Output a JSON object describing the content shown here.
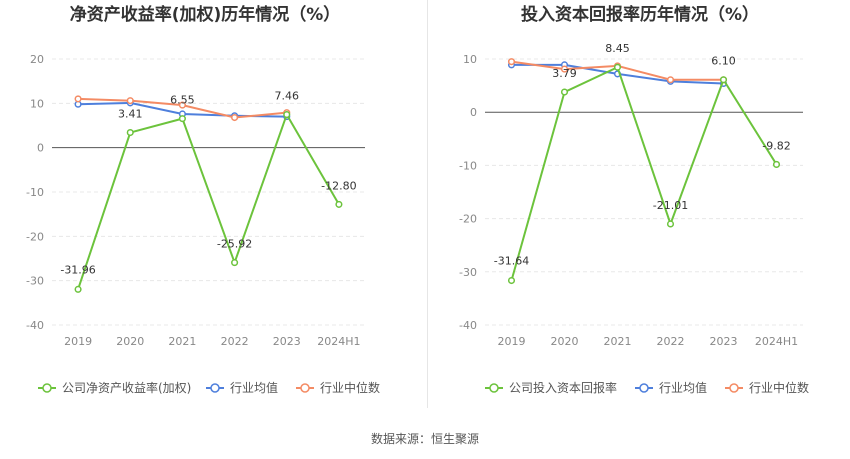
{
  "source_note": "数据来源：恒生聚源",
  "colors": {
    "company": "#6cc33c",
    "industry_avg": "#4e7fdc",
    "industry_median": "#f48b64"
  },
  "chart_data": [
    {
      "type": "line",
      "title": "净资产收益率(加权)历年情况（%）",
      "categories": [
        "2019",
        "2020",
        "2021",
        "2022",
        "2023",
        "2024H1"
      ],
      "ylim": [
        -40,
        20
      ],
      "yticks": [
        20,
        10,
        0,
        -10,
        -20,
        -30,
        -40
      ],
      "grid": true,
      "legend_position": "bottom",
      "series": [
        {
          "name": "公司净资产收益率(加权)",
          "color": "#6cc33c",
          "values": [
            -31.96,
            3.41,
            6.55,
            -25.92,
            7.46,
            -12.8
          ],
          "labels": [
            "-31.96",
            "3.41",
            "6.55",
            "-25.92",
            "7.46",
            "-12.80"
          ]
        },
        {
          "name": "行业均值",
          "color": "#4e7fdc",
          "values": [
            9.8,
            10.1,
            7.6,
            7.2,
            7.0,
            null
          ]
        },
        {
          "name": "行业中位数",
          "color": "#f48b64",
          "values": [
            11.0,
            10.6,
            9.6,
            6.8,
            7.9,
            null
          ]
        }
      ]
    },
    {
      "type": "line",
      "title": "投入资本回报率历年情况（%）",
      "categories": [
        "2019",
        "2020",
        "2021",
        "2022",
        "2023",
        "2024H1"
      ],
      "ylim": [
        -40,
        10
      ],
      "yticks": [
        10,
        0,
        -10,
        -20,
        -30,
        -40
      ],
      "grid": true,
      "legend_position": "bottom",
      "series": [
        {
          "name": "公司投入资本回报率",
          "color": "#6cc33c",
          "values": [
            -31.64,
            3.79,
            8.45,
            -21.01,
            6.1,
            -9.82
          ],
          "labels": [
            "-31.64",
            "3.79",
            "8.45",
            "-21.01",
            "6.10",
            "-9.82"
          ]
        },
        {
          "name": "行业均值",
          "color": "#4e7fdc",
          "values": [
            8.9,
            8.9,
            7.2,
            5.8,
            5.4,
            null
          ]
        },
        {
          "name": "行业中位数",
          "color": "#f48b64",
          "values": [
            9.5,
            8.1,
            8.7,
            6.1,
            6.1,
            null
          ]
        }
      ]
    }
  ]
}
